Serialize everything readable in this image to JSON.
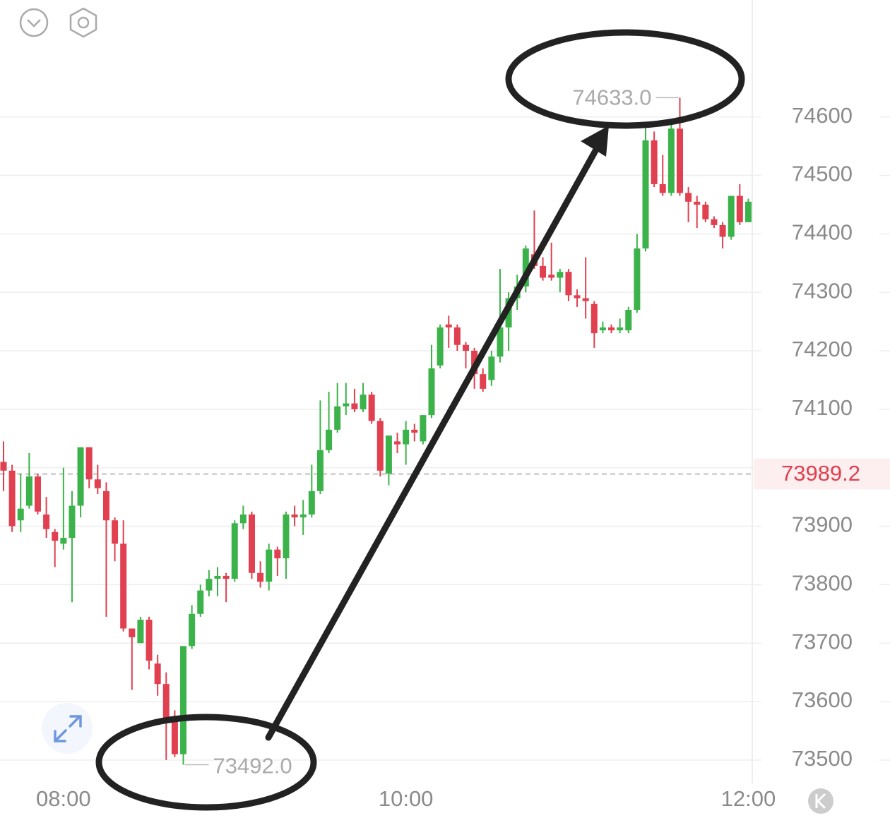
{
  "chart_data": {
    "type": "candlestick",
    "categories": [
      null,
      null,
      null,
      null,
      null,
      null,
      null,
      "08:00",
      null,
      null,
      null,
      null,
      null,
      null,
      null,
      null,
      null,
      null,
      null,
      null,
      null,
      null,
      null,
      null,
      null,
      null,
      null,
      null,
      null,
      null,
      null,
      null,
      null,
      null,
      null,
      null,
      null,
      null,
      null,
      null,
      null,
      null,
      null,
      null,
      null,
      null,
      null,
      "10:00",
      null,
      null,
      null,
      null,
      null,
      null,
      null,
      null,
      null,
      null,
      null,
      null,
      null,
      null,
      null,
      null,
      null,
      null,
      null,
      null,
      null,
      null,
      null,
      null,
      null,
      null,
      null,
      null,
      null,
      null,
      null,
      null,
      null,
      null,
      null,
      null,
      null,
      null,
      null,
      "12:00"
    ],
    "open": [
      74010,
      73995,
      73910,
      73935,
      73985,
      73920,
      73890,
      73870,
      73880,
      73935,
      74035,
      73980,
      73960,
      73910,
      73870,
      73725,
      73700,
      73740,
      73665,
      73630,
      73575,
      73510,
      73695,
      73750,
      73790,
      73810,
      73815,
      73810,
      73905,
      73920,
      73820,
      73805,
      73860,
      73845,
      73920,
      73915,
      73920,
      73960,
      74030,
      74065,
      74105,
      74110,
      74100,
      74125,
      74080,
      73990,
      74045,
      74040,
      74065,
      74045,
      74090,
      74175,
      74245,
      74240,
      74210,
      74200,
      74160,
      74150,
      74190,
      74240,
      74290,
      74310,
      74365,
      74345,
      74330,
      74325,
      74335,
      74295,
      74290,
      74280,
      74235,
      74240,
      74235,
      74235,
      74270,
      74375,
      74560,
      74485,
      74470,
      74580,
      74470,
      74455,
      74450,
      74425,
      74415,
      74395,
      74465,
      74420
    ],
    "high": [
      74045,
      74005,
      73990,
      74025,
      73990,
      73950,
      73895,
      74000,
      73960,
      74035,
      74035,
      74005,
      73975,
      73915,
      73910,
      73725,
      73745,
      73745,
      73680,
      73650,
      73585,
      73695,
      73765,
      73800,
      73825,
      73830,
      73820,
      73910,
      73935,
      73925,
      73840,
      73870,
      73865,
      73925,
      73935,
      73945,
      74005,
      74115,
      74130,
      74145,
      74145,
      74135,
      74145,
      74130,
      74085,
      74055,
      74060,
      74080,
      74075,
      74090,
      74210,
      74245,
      74260,
      74245,
      74215,
      74205,
      74170,
      74200,
      74340,
      74300,
      74330,
      74380,
      74440,
      74360,
      74385,
      74340,
      74340,
      74305,
      74360,
      74285,
      74250,
      74245,
      74255,
      74275,
      74400,
      74585,
      74575,
      74535,
      74590,
      74633,
      74480,
      74465,
      74455,
      74430,
      74420,
      74465,
      74485,
      74460
    ],
    "low": [
      73960,
      73890,
      73890,
      73930,
      73920,
      73880,
      73830,
      73860,
      73770,
      73915,
      73965,
      73955,
      73745,
      73840,
      73720,
      73620,
      73700,
      73655,
      73610,
      73500,
      73505,
      73492,
      73690,
      73745,
      73780,
      73780,
      73770,
      73805,
      73895,
      73810,
      73795,
      73790,
      73815,
      73810,
      73900,
      73885,
      73915,
      73955,
      74025,
      74060,
      74090,
      74095,
      74095,
      74075,
      73985,
      73970,
      74025,
      74005,
      74045,
      74040,
      74085,
      74170,
      74205,
      74200,
      74170,
      74135,
      74130,
      74140,
      74180,
      74200,
      74270,
      74300,
      74340,
      74320,
      74320,
      74300,
      74285,
      74275,
      74255,
      74205,
      74230,
      74230,
      74230,
      74230,
      74265,
      74370,
      74480,
      74465,
      74465,
      74465,
      74420,
      74410,
      74420,
      74410,
      74375,
      74390,
      74415,
      74420
    ],
    "close": [
      73995,
      73900,
      73930,
      73985,
      73925,
      73895,
      73875,
      73880,
      73935,
      74035,
      73980,
      73965,
      73910,
      73870,
      73725,
      73710,
      73740,
      73670,
      73630,
      73570,
      73510,
      73695,
      73750,
      73790,
      73810,
      73815,
      73810,
      73905,
      73920,
      73820,
      73805,
      73860,
      73845,
      73920,
      73915,
      73920,
      73960,
      74030,
      74065,
      74105,
      74110,
      74100,
      74125,
      74080,
      73995,
      74055,
      74040,
      74065,
      74060,
      74090,
      74170,
      74240,
      74240,
      74210,
      74200,
      74160,
      74135,
      74190,
      74240,
      74290,
      74310,
      74375,
      74345,
      74325,
      74325,
      74335,
      74295,
      74290,
      74285,
      74230,
      74240,
      74235,
      74240,
      74270,
      74375,
      74560,
      74485,
      74470,
      74580,
      74470,
      74455,
      74450,
      74425,
      74415,
      74395,
      74465,
      74420,
      74455
    ],
    "up_color": "#3cb34a",
    "down_color": "#e0404f",
    "ylim": [
      73460,
      74800
    ],
    "yticks": [
      73500,
      73600,
      73700,
      73800,
      73900,
      74000,
      74100,
      74200,
      74300,
      74400,
      74500,
      74600
    ],
    "grid": true,
    "current_price": 73989.2,
    "annotations": [
      {
        "value": 74633,
        "label": "74633.0"
      },
      {
        "value": 73492,
        "label": "73492.0"
      }
    ]
  }
}
